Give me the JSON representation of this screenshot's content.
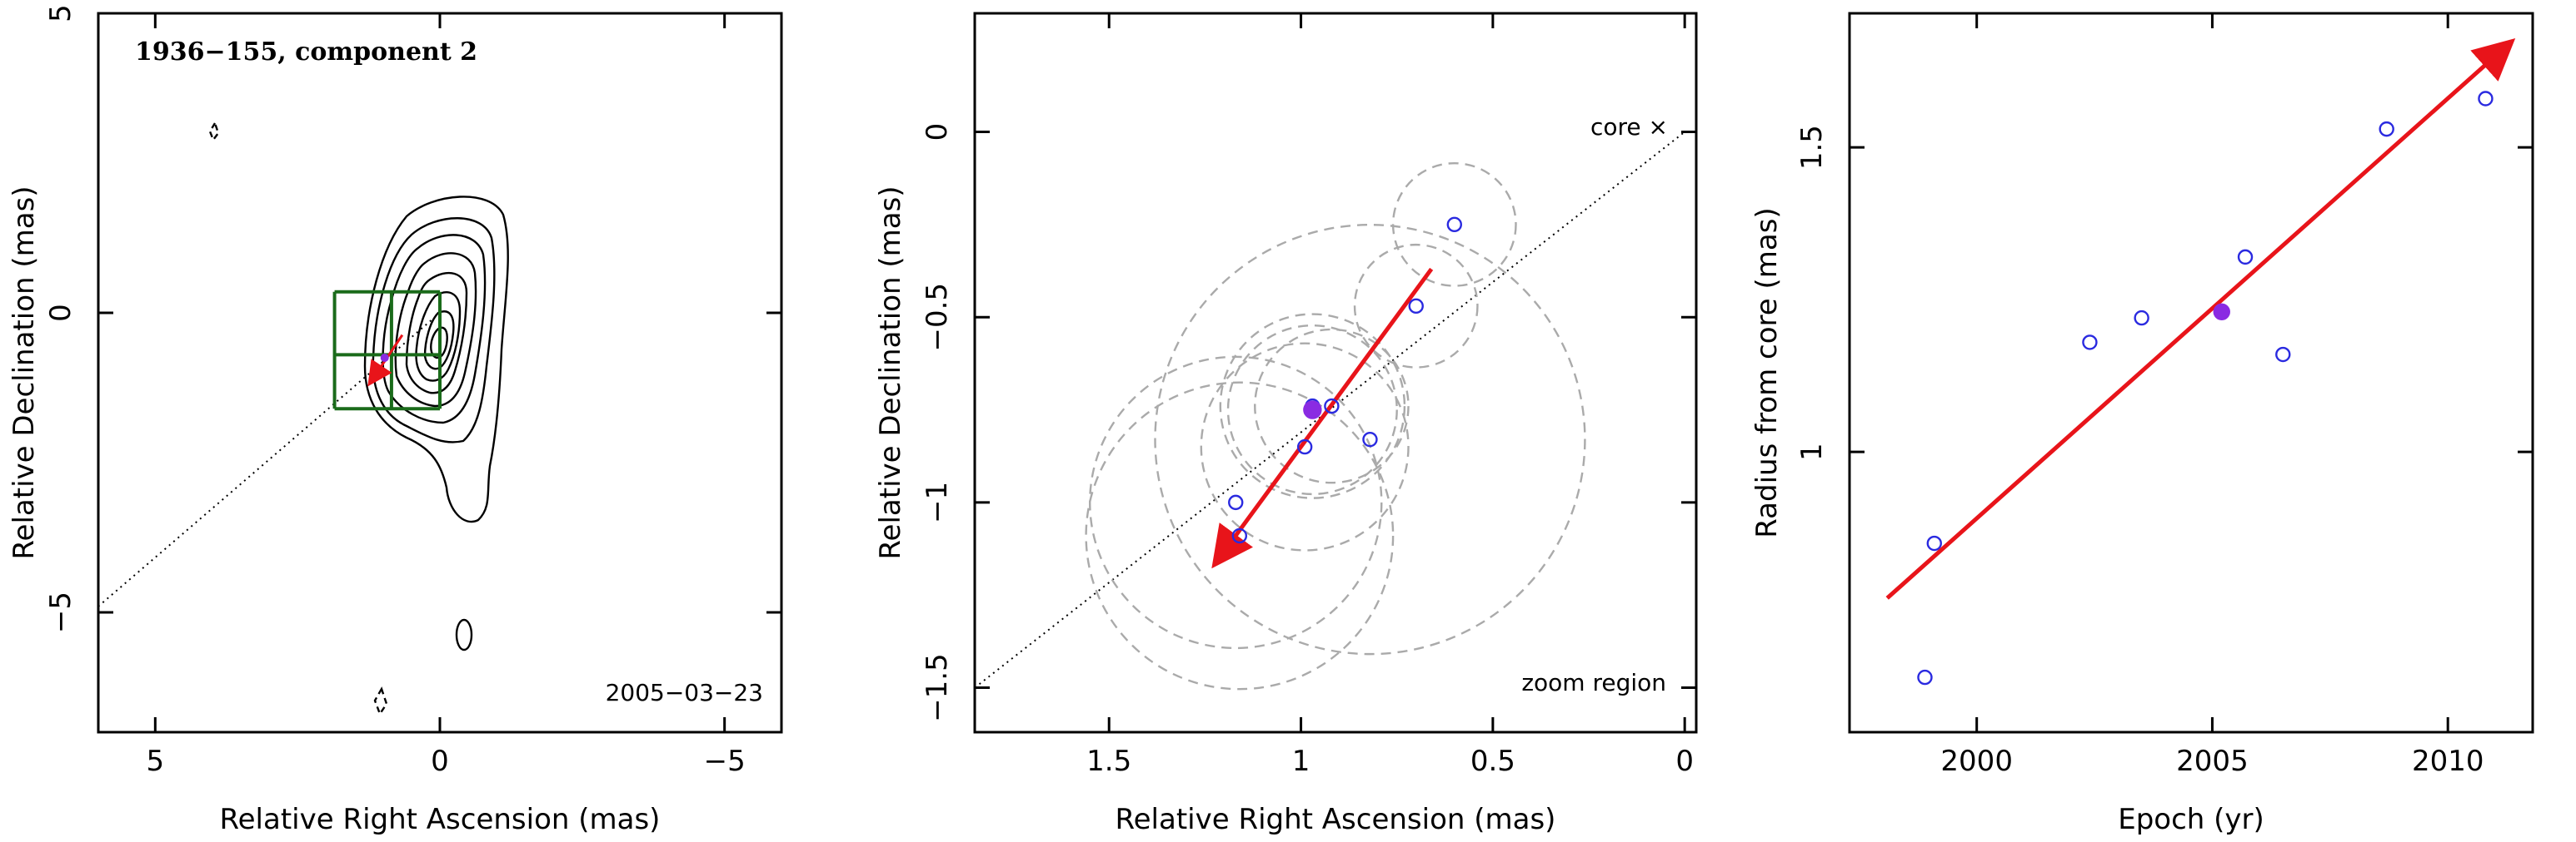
{
  "colors": {
    "fit_arrow": "#e8141a",
    "open_point": "#2a2ae0",
    "filled_point": "#8a2be2",
    "error_circle": "#aaaaaa",
    "zoom_box": "#1a6b1a"
  },
  "chart_data": [
    {
      "type": "contour-map",
      "title": "1936−155, component 2",
      "epoch_label": "2005−03−23",
      "xlabel": "Relative Right Ascension (mas)",
      "ylabel": "Relative Declination (mas)",
      "xlim": [
        6,
        -6
      ],
      "ylim": [
        -7,
        5
      ],
      "xticks": [
        5,
        0,
        -5
      ],
      "yticks": [
        -5,
        0,
        5
      ],
      "xtick_labels": [
        "5",
        "0",
        "−5"
      ],
      "ytick_labels": [
        "−5",
        "0",
        "5"
      ],
      "jet_axis_line": {
        "x1": 6,
        "y1": -4.9,
        "x2": 0,
        "y2": 0
      },
      "zoom_grid": {
        "x": [
          1.85,
          0.85,
          0
        ],
        "y": [
          0.35,
          -0.7,
          -1.6
        ]
      },
      "component_point": {
        "x": 0.97,
        "y": -0.75
      },
      "fit_arrow": {
        "x1": 0.66,
        "y1": -0.37,
        "x2": 1.22,
        "y2": -1.16
      }
    },
    {
      "type": "scatter",
      "xlabel": "Relative Right Ascension (mas)",
      "ylabel": "Relative Declination (mas)",
      "xlim": [
        1.85,
        -0.03
      ],
      "ylim": [
        -1.62,
        0.32
      ],
      "xticks": [
        1.5,
        1,
        0.5,
        0
      ],
      "yticks": [
        0,
        -0.5,
        -1,
        -1.5
      ],
      "xtick_labels": [
        "1.5",
        "1",
        "0.5",
        "0"
      ],
      "ytick_labels": [
        "0",
        "−0.5",
        "−1",
        "−1.5"
      ],
      "core_label": "core ×",
      "zoom_label": "zoom region",
      "jet_axis_line": {
        "x1": 1.85,
        "y1": -1.5,
        "x2": 0,
        "y2": 0
      },
      "points": [
        {
          "x": 0.6,
          "y": -0.25,
          "r": 0.16,
          "filled": false
        },
        {
          "x": 0.7,
          "y": -0.47,
          "r": 0.16,
          "filled": false
        },
        {
          "x": 0.92,
          "y": -0.74,
          "r": 0.2,
          "filled": false
        },
        {
          "x": 0.82,
          "y": -0.83,
          "r": 0.56,
          "filled": false
        },
        {
          "x": 0.99,
          "y": -0.85,
          "r": 0.27,
          "filled": false
        },
        {
          "x": 1.17,
          "y": -1.0,
          "r": 0.38,
          "filled": false
        },
        {
          "x": 1.16,
          "y": -1.09,
          "r": 0.4,
          "filled": false
        },
        {
          "x": 0.97,
          "y": -0.74,
          "r": 0.24,
          "filled": false
        },
        {
          "x": 0.97,
          "y": -0.75,
          "r": 0.22,
          "filled": true
        }
      ],
      "fit_arrow": {
        "x1": 0.66,
        "y1": -0.37,
        "x2": 1.22,
        "y2": -1.16
      }
    },
    {
      "type": "scatter",
      "xlabel": "Epoch (yr)",
      "ylabel": "Radius from core (mas)",
      "xlim": [
        1997.3,
        2011.8
      ],
      "ylim": [
        0.54,
        1.72
      ],
      "xticks": [
        2000,
        2005,
        2010
      ],
      "yticks": [
        1,
        1.5
      ],
      "xtick_labels": [
        "2000",
        "2005",
        "2010"
      ],
      "ytick_labels": [
        "1",
        "1.5"
      ],
      "points": [
        {
          "x": 1998.9,
          "y": 0.63,
          "filled": false
        },
        {
          "x": 1999.1,
          "y": 0.85,
          "filled": false
        },
        {
          "x": 2002.4,
          "y": 1.18,
          "filled": false
        },
        {
          "x": 2003.5,
          "y": 1.22,
          "filled": false
        },
        {
          "x": 2005.2,
          "y": 1.23,
          "filled": true
        },
        {
          "x": 2005.7,
          "y": 1.32,
          "filled": false
        },
        {
          "x": 2006.5,
          "y": 1.16,
          "filled": false
        },
        {
          "x": 2008.7,
          "y": 1.53,
          "filled": false
        },
        {
          "x": 2010.8,
          "y": 1.58,
          "filled": false
        }
      ],
      "fit_arrow": {
        "x1": 1998.1,
        "y1": 0.76,
        "x2": 2011.3,
        "y2": 1.67
      }
    }
  ]
}
